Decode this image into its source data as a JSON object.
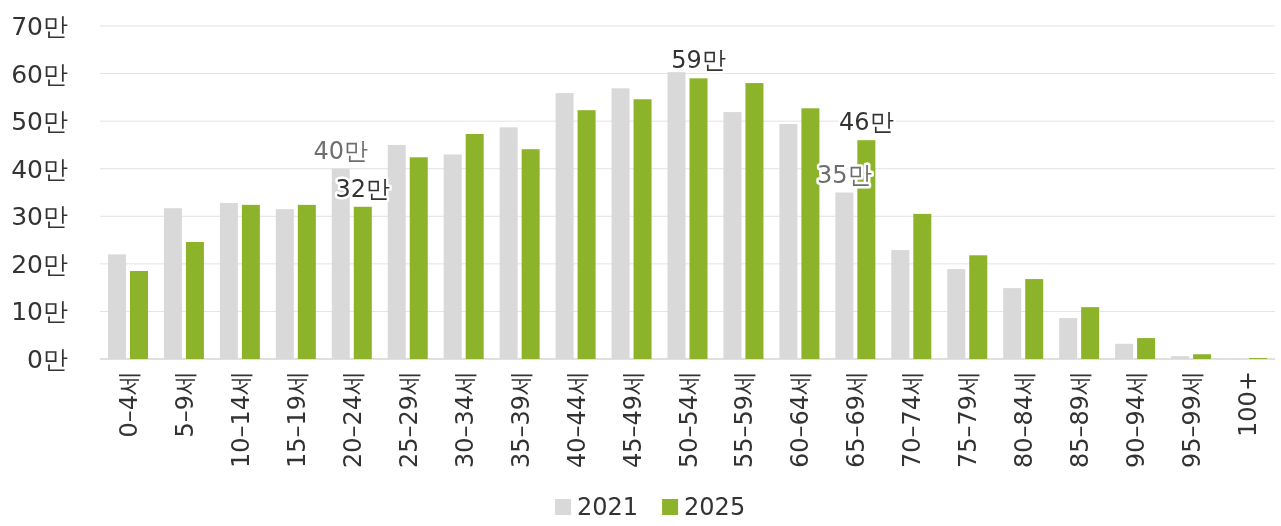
{
  "chart_data": {
    "type": "bar",
    "categories": [
      "0–4세",
      "5–9세",
      "10–14세",
      "15–19세",
      "20–24세",
      "25–29세",
      "30–34세",
      "35–39세",
      "40–44세",
      "45–49세",
      "50–54세",
      "55–59세",
      "60–64세",
      "65–69세",
      "70–74세",
      "75–79세",
      "80–84세",
      "85–89세",
      "90–94세",
      "95–99세",
      "100+"
    ],
    "series": [
      {
        "name": "2021",
        "color": "#d9d9d9",
        "values": [
          22,
          31.7,
          32.8,
          31.5,
          40,
          45,
          43,
          48.7,
          55.9,
          56.9,
          60.3,
          51.9,
          49.4,
          35,
          22.9,
          18.9,
          14.9,
          8.6,
          3.2,
          0.6,
          0.1
        ],
        "value_labels": [
          null,
          null,
          null,
          null,
          "40만",
          null,
          null,
          null,
          null,
          null,
          null,
          null,
          null,
          "35만",
          null,
          null,
          null,
          null,
          null,
          null,
          null
        ]
      },
      {
        "name": "2025",
        "color": "#8db32b",
        "values": [
          18.5,
          24.6,
          32.4,
          32.4,
          32,
          42.4,
          47.3,
          44.1,
          52.3,
          54.6,
          59,
          58,
          52.7,
          46,
          30.5,
          21.8,
          16.8,
          10.9,
          4.4,
          1,
          0.2
        ],
        "value_labels": [
          null,
          null,
          null,
          null,
          "32만",
          null,
          null,
          null,
          null,
          null,
          "59만",
          null,
          null,
          "46만",
          null,
          null,
          null,
          null,
          null,
          null,
          null
        ]
      }
    ],
    "ylim": [
      0,
      70
    ],
    "yticks": [
      {
        "value": 0,
        "label": "0만"
      },
      {
        "value": 10,
        "label": "10만"
      },
      {
        "value": 20,
        "label": "20만"
      },
      {
        "value": 30,
        "label": "30만"
      },
      {
        "value": 40,
        "label": "40만"
      },
      {
        "value": 50,
        "label": "50만"
      },
      {
        "value": 60,
        "label": "60만"
      },
      {
        "value": 70,
        "label": "70만"
      }
    ],
    "grid": "y",
    "legend": "bottom"
  }
}
